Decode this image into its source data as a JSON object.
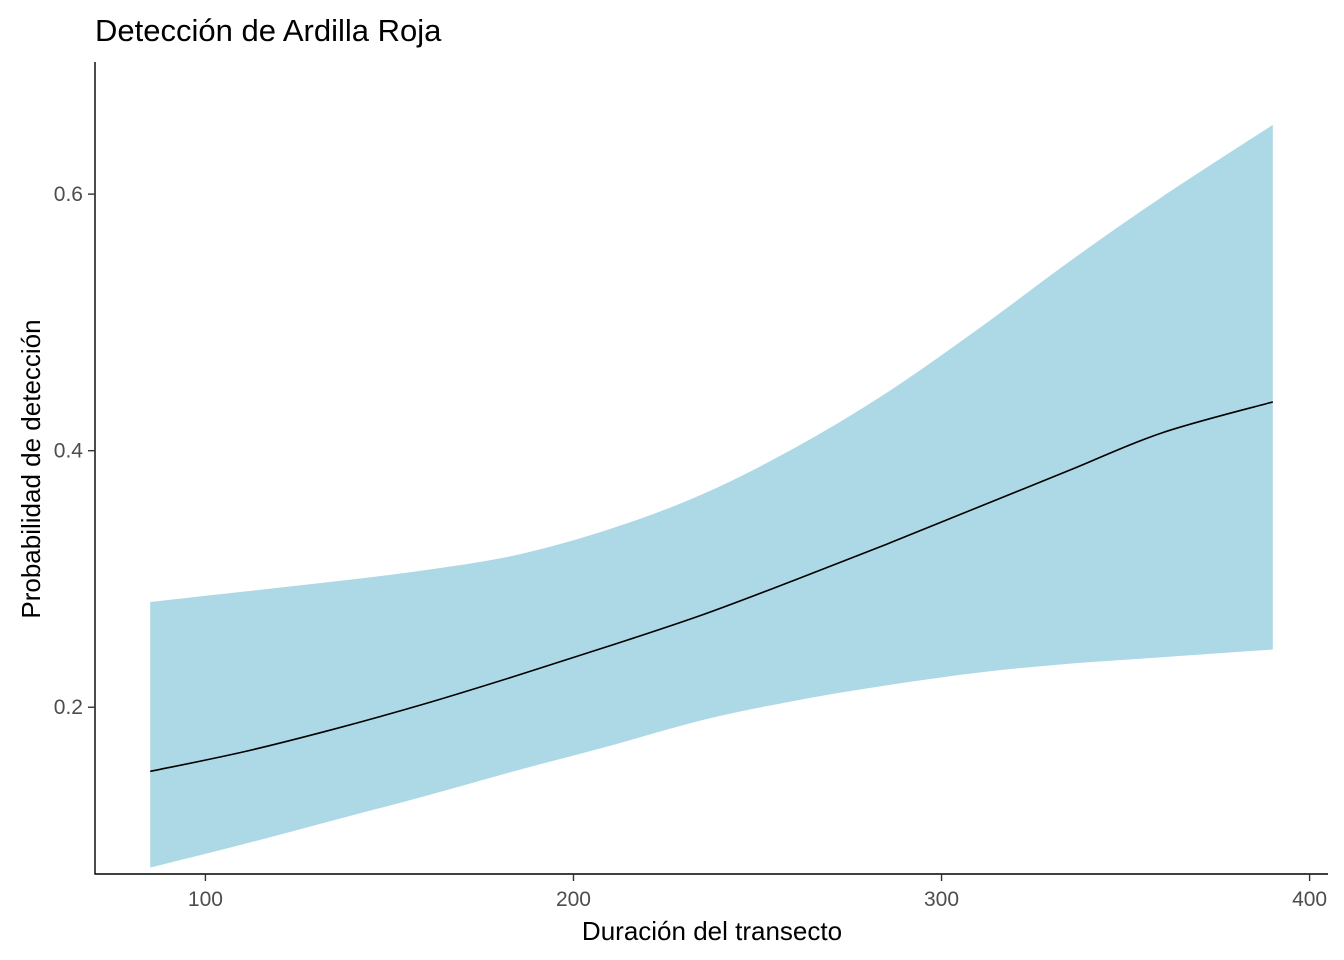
{
  "chart_data": {
    "type": "line",
    "title": "Detección de Ardilla Roja",
    "xlabel": "Duración del transecto",
    "ylabel": "Probabilidad de detección",
    "xlim": [
      70,
      405
    ],
    "ylim": [
      0.07,
      0.703
    ],
    "x_ticks": [
      100,
      200,
      300,
      400
    ],
    "x_tick_labels": [
      "100",
      "200",
      "300",
      "400"
    ],
    "y_ticks": [
      0.2,
      0.4,
      0.6
    ],
    "y_tick_labels": [
      "0.2",
      "0.4",
      "0.6"
    ],
    "grid": false,
    "legend": "none",
    "series": [
      {
        "x": [
          85,
          110,
          135,
          160,
          185,
          210,
          235,
          260,
          285,
          310,
          335,
          360,
          390
        ],
        "values": [
          0.15,
          0.165,
          0.183,
          0.203,
          0.225,
          0.248,
          0.272,
          0.299,
          0.327,
          0.356,
          0.385,
          0.414,
          0.438
        ]
      }
    ],
    "ribbon": {
      "x": [
        85,
        110,
        135,
        160,
        185,
        210,
        235,
        260,
        285,
        310,
        335,
        360,
        390
      ],
      "lower": [
        0.075,
        0.093,
        0.112,
        0.131,
        0.151,
        0.17,
        0.19,
        0.205,
        0.217,
        0.227,
        0.234,
        0.239,
        0.245
      ],
      "upper": [
        0.282,
        0.29,
        0.298,
        0.307,
        0.319,
        0.339,
        0.366,
        0.402,
        0.445,
        0.495,
        0.548,
        0.598,
        0.654
      ]
    },
    "colors": {
      "ribbon": "#add8e6",
      "line": "#000000",
      "axis": "#000000",
      "tick_label": "#4d4d4d"
    }
  }
}
